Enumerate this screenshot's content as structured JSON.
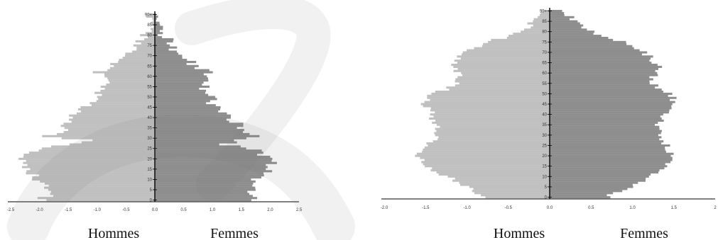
{
  "chart_data": [
    {
      "type": "bar",
      "orientation": "horizontal",
      "subtype": "population-pyramid",
      "x_ticks": [
        "-2.5",
        "-2.0",
        "-1.5",
        "-1.0",
        "-0.5",
        "0.0",
        "0.5",
        "1.0",
        "1.5",
        "2.0",
        "2.5"
      ],
      "xlim": [
        -2.5,
        2.5
      ],
      "y_ticks": [
        "0",
        "5",
        "10",
        "15",
        "20",
        "25",
        "30",
        "35",
        "40",
        "45",
        "50",
        "55",
        "60",
        "65",
        "70",
        "75",
        "80",
        "85",
        "90+"
      ],
      "ylim": [
        0,
        90
      ],
      "left_label": "Hommes",
      "right_label": "Femmes",
      "colors": {
        "hommes": "#c0c0c0",
        "femmes": "#8e8e8e",
        "axis": "#000000"
      },
      "series": [
        {
          "key": "hommes",
          "knots": [
            [
              0,
              2.0
            ],
            [
              3,
              1.8
            ],
            [
              8,
              1.95
            ],
            [
              14,
              2.15
            ],
            [
              18,
              2.25
            ],
            [
              20,
              2.3
            ],
            [
              23,
              2.2
            ],
            [
              25,
              2.0
            ],
            [
              27,
              1.6
            ],
            [
              29,
              1.1
            ],
            [
              31,
              1.9
            ],
            [
              33,
              1.6
            ],
            [
              35,
              1.55
            ],
            [
              38,
              1.45
            ],
            [
              40,
              1.4
            ],
            [
              43,
              1.35
            ],
            [
              46,
              1.15
            ],
            [
              50,
              1.05
            ],
            [
              55,
              0.85
            ],
            [
              58,
              0.85
            ],
            [
              60,
              0.95
            ],
            [
              62,
              1.0
            ],
            [
              66,
              0.75
            ],
            [
              70,
              0.55
            ],
            [
              75,
              0.35
            ],
            [
              80,
              0.2
            ],
            [
              85,
              0.08
            ],
            [
              90,
              0.04
            ]
          ],
          "jitter": 0.12
        },
        {
          "key": "femmes",
          "knots": [
            [
              0,
              1.75
            ],
            [
              3,
              1.65
            ],
            [
              8,
              1.7
            ],
            [
              14,
              1.95
            ],
            [
              18,
              2.0
            ],
            [
              20,
              1.95
            ],
            [
              23,
              1.85
            ],
            [
              25,
              1.65
            ],
            [
              27,
              1.2
            ],
            [
              29,
              1.45
            ],
            [
              31,
              1.8
            ],
            [
              33,
              1.55
            ],
            [
              36,
              1.5
            ],
            [
              38,
              1.35
            ],
            [
              40,
              1.25
            ],
            [
              43,
              1.2
            ],
            [
              46,
              1.0
            ],
            [
              50,
              0.95
            ],
            [
              55,
              0.85
            ],
            [
              58,
              0.9
            ],
            [
              62,
              0.9
            ],
            [
              66,
              0.65
            ],
            [
              70,
              0.45
            ],
            [
              75,
              0.3
            ],
            [
              80,
              0.15
            ],
            [
              85,
              0.06
            ],
            [
              90,
              0.03
            ]
          ],
          "jitter": 0.12
        }
      ]
    },
    {
      "type": "bar",
      "orientation": "horizontal",
      "subtype": "population-pyramid",
      "x_ticks": [
        "-2.0",
        "-1.5",
        "-1.0",
        "-0.5",
        "0.0",
        "0.5",
        "1.0",
        "1.5",
        "2"
      ],
      "xlim": [
        -2.0,
        2.0
      ],
      "y_ticks": [
        "0",
        "5",
        "10",
        "15",
        "20",
        "25",
        "30",
        "35",
        "40",
        "45",
        "50",
        "55",
        "60",
        "65",
        "70",
        "75",
        "80",
        "85",
        "90+"
      ],
      "ylim": [
        0,
        90
      ],
      "left_label": "Hommes",
      "right_label": "Femmes",
      "colors": {
        "hommes": "#c0c0c0",
        "femmes": "#8e8e8e",
        "axis": "#000000"
      },
      "series": [
        {
          "key": "hommes",
          "knots": [
            [
              0,
              0.75
            ],
            [
              3,
              0.9
            ],
            [
              6,
              1.05
            ],
            [
              10,
              1.25
            ],
            [
              14,
              1.45
            ],
            [
              18,
              1.55
            ],
            [
              20,
              1.6
            ],
            [
              23,
              1.55
            ],
            [
              25,
              1.45
            ],
            [
              28,
              1.4
            ],
            [
              31,
              1.35
            ],
            [
              35,
              1.35
            ],
            [
              38,
              1.4
            ],
            [
              42,
              1.45
            ],
            [
              45,
              1.5
            ],
            [
              48,
              1.5
            ],
            [
              50,
              1.4
            ],
            [
              53,
              1.2
            ],
            [
              56,
              1.1
            ],
            [
              60,
              1.1
            ],
            [
              63,
              1.15
            ],
            [
              66,
              1.15
            ],
            [
              70,
              1.0
            ],
            [
              73,
              0.85
            ],
            [
              76,
              0.65
            ],
            [
              80,
              0.35
            ],
            [
              83,
              0.25
            ],
            [
              86,
              0.15
            ],
            [
              90,
              0.1
            ]
          ],
          "jitter": 0.06
        },
        {
          "key": "femmes",
          "knots": [
            [
              0,
              0.7
            ],
            [
              3,
              0.85
            ],
            [
              6,
              1.0
            ],
            [
              10,
              1.2
            ],
            [
              14,
              1.35
            ],
            [
              18,
              1.45
            ],
            [
              20,
              1.5
            ],
            [
              23,
              1.45
            ],
            [
              25,
              1.4
            ],
            [
              28,
              1.35
            ],
            [
              31,
              1.3
            ],
            [
              35,
              1.3
            ],
            [
              38,
              1.35
            ],
            [
              42,
              1.4
            ],
            [
              45,
              1.45
            ],
            [
              48,
              1.5
            ],
            [
              50,
              1.45
            ],
            [
              53,
              1.3
            ],
            [
              56,
              1.25
            ],
            [
              60,
              1.25
            ],
            [
              63,
              1.3
            ],
            [
              66,
              1.25
            ],
            [
              70,
              1.15
            ],
            [
              73,
              1.0
            ],
            [
              76,
              0.8
            ],
            [
              80,
              0.5
            ],
            [
              83,
              0.35
            ],
            [
              86,
              0.25
            ],
            [
              90,
              0.2
            ]
          ],
          "jitter": 0.06
        }
      ]
    }
  ]
}
